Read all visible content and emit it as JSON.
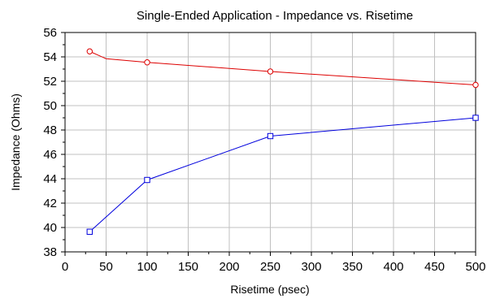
{
  "chart_data": {
    "type": "line",
    "title": "Single-Ended Application - Impedance vs. Risetime",
    "xlabel": "Risetime (psec)",
    "ylabel": "Impedance (Ohms)",
    "xlim": [
      0,
      500
    ],
    "ylim": [
      38,
      56
    ],
    "xticks": [
      0,
      50,
      100,
      150,
      200,
      250,
      300,
      350,
      400,
      450,
      500
    ],
    "yticks": [
      38,
      40,
      42,
      44,
      46,
      48,
      50,
      52,
      54,
      56
    ],
    "grid": true,
    "series": [
      {
        "color": "#dd0000",
        "marker": "circle",
        "line_points": [
          [
            30,
            54.45
          ],
          [
            50,
            53.85
          ],
          [
            100,
            53.55
          ],
          [
            250,
            52.8
          ],
          [
            500,
            51.7
          ]
        ],
        "marker_points": [
          [
            30,
            54.45
          ],
          [
            100,
            53.55
          ],
          [
            250,
            52.8
          ],
          [
            500,
            51.7
          ]
        ]
      },
      {
        "color": "#0000dd",
        "marker": "square",
        "line_points": [
          [
            30,
            39.65
          ],
          [
            100,
            43.9
          ],
          [
            250,
            47.5
          ],
          [
            500,
            49.0
          ]
        ],
        "marker_points": [
          [
            30,
            39.65
          ],
          [
            100,
            43.9
          ],
          [
            250,
            47.5
          ],
          [
            500,
            49.0
          ]
        ]
      }
    ]
  }
}
